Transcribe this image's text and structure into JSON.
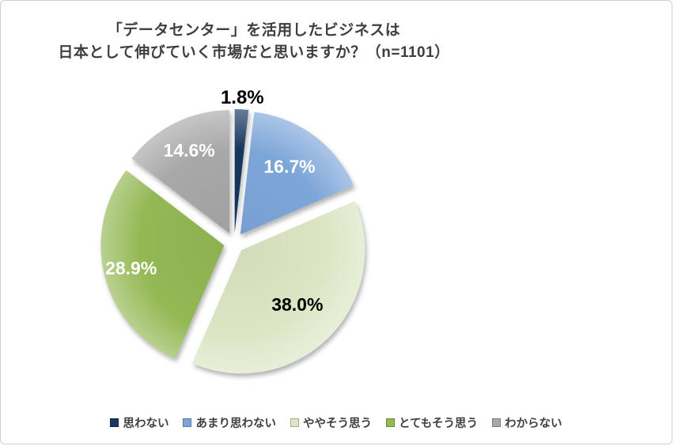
{
  "title": {
    "line1": "「データセンター」を活用したビジネスは",
    "line2": "日本として伸びていく市場だと思いますか？（n=1101）"
  },
  "chart_data": {
    "type": "pie",
    "n": 1101,
    "categories": [
      "思わない",
      "あまり思わない",
      "ややそう思う",
      "とてもそう思う",
      "わからない"
    ],
    "values": [
      1.8,
      16.7,
      38.0,
      28.9,
      14.6
    ],
    "data_labels": [
      "1.8%",
      "16.7%",
      "38.0%",
      "28.9%",
      "14.6%"
    ],
    "colors": [
      "#17375e",
      "#7da6d8",
      "#dce6c5",
      "#94b854",
      "#a8a8a8"
    ],
    "label_colors": [
      "#000000",
      "#ffffff",
      "#000000",
      "#ffffff",
      "#ffffff"
    ],
    "start_angle_deg": -90,
    "direction": "clockwise",
    "exploded": true,
    "legend_position": "bottom",
    "grid": false
  }
}
